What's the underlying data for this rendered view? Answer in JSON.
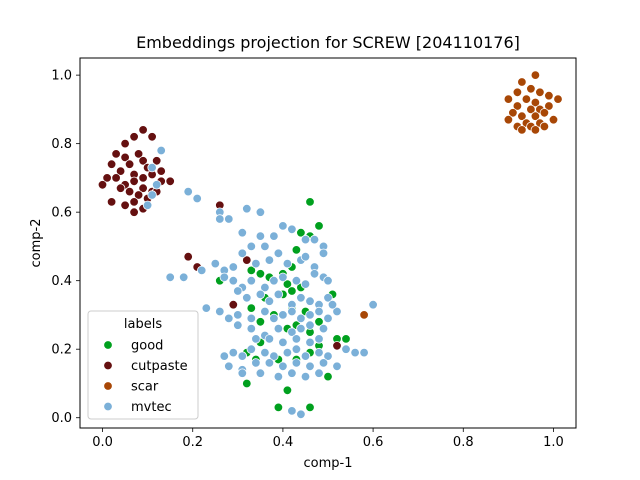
{
  "chart_data": {
    "type": "scatter",
    "title": "Embeddings projection for SCREW [204110176]",
    "xlabel": "comp-1",
    "ylabel": "comp-2",
    "xlim": [
      -0.05,
      1.05
    ],
    "ylim": [
      -0.03,
      1.05
    ],
    "xticks": [
      "0.0",
      "0.2",
      "0.4",
      "0.6",
      "0.8",
      "1.0"
    ],
    "yticks": [
      "0.0",
      "0.2",
      "0.4",
      "0.6",
      "0.8",
      "1.0"
    ],
    "grid": false,
    "legend": {
      "title": "labels",
      "placement": "lower-left"
    },
    "series": [
      {
        "name": "good",
        "color": "#00a01e",
        "points": [
          [
            0.46,
            0.63
          ],
          [
            0.48,
            0.56
          ],
          [
            0.44,
            0.54
          ],
          [
            0.46,
            0.53
          ],
          [
            0.43,
            0.49
          ],
          [
            0.35,
            0.42
          ],
          [
            0.37,
            0.41
          ],
          [
            0.4,
            0.42
          ],
          [
            0.42,
            0.44
          ],
          [
            0.33,
            0.43
          ],
          [
            0.26,
            0.4
          ],
          [
            0.41,
            0.39
          ],
          [
            0.42,
            0.37
          ],
          [
            0.44,
            0.38
          ],
          [
            0.4,
            0.36
          ],
          [
            0.38,
            0.3
          ],
          [
            0.42,
            0.32
          ],
          [
            0.45,
            0.31
          ],
          [
            0.36,
            0.35
          ],
          [
            0.35,
            0.28
          ],
          [
            0.33,
            0.32
          ],
          [
            0.51,
            0.36
          ],
          [
            0.48,
            0.28
          ],
          [
            0.43,
            0.27
          ],
          [
            0.41,
            0.26
          ],
          [
            0.46,
            0.25
          ],
          [
            0.35,
            0.22
          ],
          [
            0.34,
            0.17
          ],
          [
            0.39,
            0.17
          ],
          [
            0.43,
            0.17
          ],
          [
            0.46,
            0.19
          ],
          [
            0.48,
            0.21
          ],
          [
            0.52,
            0.23
          ],
          [
            0.54,
            0.23
          ],
          [
            0.32,
            0.19
          ],
          [
            0.5,
            0.12
          ],
          [
            0.32,
            0.1
          ],
          [
            0.41,
            0.08
          ],
          [
            0.39,
            0.03
          ],
          [
            0.46,
            0.03
          ]
        ]
      },
      {
        "name": "cutpaste",
        "color": "#651010",
        "points": [
          [
            0.05,
            0.8
          ],
          [
            0.07,
            0.82
          ],
          [
            0.09,
            0.84
          ],
          [
            0.11,
            0.82
          ],
          [
            0.03,
            0.77
          ],
          [
            0.05,
            0.76
          ],
          [
            0.06,
            0.74
          ],
          [
            0.08,
            0.77
          ],
          [
            0.09,
            0.75
          ],
          [
            0.1,
            0.73
          ],
          [
            0.12,
            0.75
          ],
          [
            0.13,
            0.72
          ],
          [
            0.02,
            0.74
          ],
          [
            0.04,
            0.72
          ],
          [
            0.07,
            0.71
          ],
          [
            0.09,
            0.7
          ],
          [
            0.11,
            0.71
          ],
          [
            0.01,
            0.7
          ],
          [
            0.03,
            0.7
          ],
          [
            0.05,
            0.68
          ],
          [
            0.07,
            0.69
          ],
          [
            0.09,
            0.67
          ],
          [
            0.11,
            0.66
          ],
          [
            0.13,
            0.69
          ],
          [
            0.15,
            0.69
          ],
          [
            0.0,
            0.68
          ],
          [
            0.04,
            0.67
          ],
          [
            0.06,
            0.66
          ],
          [
            0.08,
            0.65
          ],
          [
            0.1,
            0.64
          ],
          [
            0.12,
            0.66
          ],
          [
            0.02,
            0.63
          ],
          [
            0.05,
            0.62
          ],
          [
            0.07,
            0.63
          ],
          [
            0.09,
            0.61
          ],
          [
            0.07,
            0.6
          ],
          [
            0.26,
            0.62
          ],
          [
            0.19,
            0.47
          ],
          [
            0.21,
            0.44
          ],
          [
            0.32,
            0.46
          ],
          [
            0.29,
            0.33
          ],
          [
            0.52,
            0.21
          ]
        ]
      },
      {
        "name": "scar",
        "color": "#a84706",
        "points": [
          [
            0.96,
            1.0
          ],
          [
            0.93,
            0.98
          ],
          [
            0.95,
            0.96
          ],
          [
            0.92,
            0.95
          ],
          [
            0.97,
            0.95
          ],
          [
            0.99,
            0.94
          ],
          [
            0.9,
            0.93
          ],
          [
            0.94,
            0.93
          ],
          [
            0.96,
            0.92
          ],
          [
            1.01,
            0.93
          ],
          [
            0.92,
            0.91
          ],
          [
            0.95,
            0.9
          ],
          [
            0.97,
            0.9
          ],
          [
            0.99,
            0.91
          ],
          [
            0.91,
            0.89
          ],
          [
            0.93,
            0.88
          ],
          [
            0.96,
            0.88
          ],
          [
            0.98,
            0.89
          ],
          [
            0.9,
            0.87
          ],
          [
            0.94,
            0.86
          ],
          [
            0.97,
            0.86
          ],
          [
            1.0,
            0.87
          ],
          [
            0.92,
            0.85
          ],
          [
            0.95,
            0.85
          ],
          [
            0.98,
            0.85
          ],
          [
            0.93,
            0.84
          ],
          [
            0.96,
            0.84
          ],
          [
            0.58,
            0.3
          ]
        ]
      },
      {
        "name": "mvtec",
        "color": "#7bb0d8",
        "points": [
          [
            0.13,
            0.78
          ],
          [
            0.11,
            0.73
          ],
          [
            0.12,
            0.68
          ],
          [
            0.11,
            0.65
          ],
          [
            0.1,
            0.62
          ],
          [
            0.19,
            0.66
          ],
          [
            0.21,
            0.64
          ],
          [
            0.26,
            0.6
          ],
          [
            0.26,
            0.58
          ],
          [
            0.28,
            0.58
          ],
          [
            0.32,
            0.61
          ],
          [
            0.35,
            0.6
          ],
          [
            0.31,
            0.54
          ],
          [
            0.35,
            0.53
          ],
          [
            0.33,
            0.5
          ],
          [
            0.36,
            0.5
          ],
          [
            0.38,
            0.53
          ],
          [
            0.4,
            0.56
          ],
          [
            0.42,
            0.55
          ],
          [
            0.45,
            0.52
          ],
          [
            0.47,
            0.52
          ],
          [
            0.49,
            0.5
          ],
          [
            0.31,
            0.48
          ],
          [
            0.34,
            0.45
          ],
          [
            0.37,
            0.46
          ],
          [
            0.39,
            0.48
          ],
          [
            0.41,
            0.45
          ],
          [
            0.44,
            0.46
          ],
          [
            0.45,
            0.47
          ],
          [
            0.47,
            0.44
          ],
          [
            0.49,
            0.48
          ],
          [
            0.25,
            0.45
          ],
          [
            0.27,
            0.43
          ],
          [
            0.29,
            0.44
          ],
          [
            0.22,
            0.43
          ],
          [
            0.27,
            0.41
          ],
          [
            0.29,
            0.4
          ],
          [
            0.31,
            0.38
          ],
          [
            0.33,
            0.4
          ],
          [
            0.36,
            0.38
          ],
          [
            0.38,
            0.4
          ],
          [
            0.4,
            0.41
          ],
          [
            0.43,
            0.4
          ],
          [
            0.45,
            0.39
          ],
          [
            0.47,
            0.42
          ],
          [
            0.49,
            0.41
          ],
          [
            0.5,
            0.4
          ],
          [
            0.15,
            0.41
          ],
          [
            0.18,
            0.41
          ],
          [
            0.3,
            0.37
          ],
          [
            0.32,
            0.35
          ],
          [
            0.35,
            0.36
          ],
          [
            0.37,
            0.34
          ],
          [
            0.39,
            0.36
          ],
          [
            0.42,
            0.33
          ],
          [
            0.44,
            0.35
          ],
          [
            0.46,
            0.34
          ],
          [
            0.48,
            0.33
          ],
          [
            0.5,
            0.35
          ],
          [
            0.23,
            0.32
          ],
          [
            0.26,
            0.31
          ],
          [
            0.28,
            0.29
          ],
          [
            0.3,
            0.3
          ],
          [
            0.33,
            0.29
          ],
          [
            0.36,
            0.31
          ],
          [
            0.38,
            0.29
          ],
          [
            0.4,
            0.3
          ],
          [
            0.42,
            0.31
          ],
          [
            0.44,
            0.29
          ],
          [
            0.46,
            0.3
          ],
          [
            0.48,
            0.31
          ],
          [
            0.5,
            0.29
          ],
          [
            0.52,
            0.31
          ],
          [
            0.51,
            0.33
          ],
          [
            0.6,
            0.33
          ],
          [
            0.3,
            0.27
          ],
          [
            0.33,
            0.26
          ],
          [
            0.36,
            0.24
          ],
          [
            0.39,
            0.26
          ],
          [
            0.42,
            0.25
          ],
          [
            0.44,
            0.26
          ],
          [
            0.46,
            0.27
          ],
          [
            0.49,
            0.26
          ],
          [
            0.34,
            0.23
          ],
          [
            0.37,
            0.23
          ],
          [
            0.4,
            0.22
          ],
          [
            0.43,
            0.23
          ],
          [
            0.46,
            0.22
          ],
          [
            0.48,
            0.23
          ],
          [
            0.27,
            0.18
          ],
          [
            0.29,
            0.19
          ],
          [
            0.31,
            0.18
          ],
          [
            0.33,
            0.2
          ],
          [
            0.36,
            0.19
          ],
          [
            0.38,
            0.18
          ],
          [
            0.41,
            0.19
          ],
          [
            0.43,
            0.2
          ],
          [
            0.45,
            0.18
          ],
          [
            0.48,
            0.19
          ],
          [
            0.5,
            0.18
          ],
          [
            0.28,
            0.15
          ],
          [
            0.31,
            0.14
          ],
          [
            0.34,
            0.16
          ],
          [
            0.37,
            0.16
          ],
          [
            0.4,
            0.15
          ],
          [
            0.43,
            0.16
          ],
          [
            0.46,
            0.15
          ],
          [
            0.49,
            0.16
          ],
          [
            0.52,
            0.15
          ],
          [
            0.31,
            0.13
          ],
          [
            0.35,
            0.13
          ],
          [
            0.39,
            0.12
          ],
          [
            0.42,
            0.13
          ],
          [
            0.45,
            0.12
          ],
          [
            0.48,
            0.13
          ],
          [
            0.54,
            0.2
          ],
          [
            0.56,
            0.19
          ],
          [
            0.58,
            0.19
          ],
          [
            0.42,
            0.02
          ],
          [
            0.44,
            0.01
          ]
        ]
      }
    ]
  }
}
